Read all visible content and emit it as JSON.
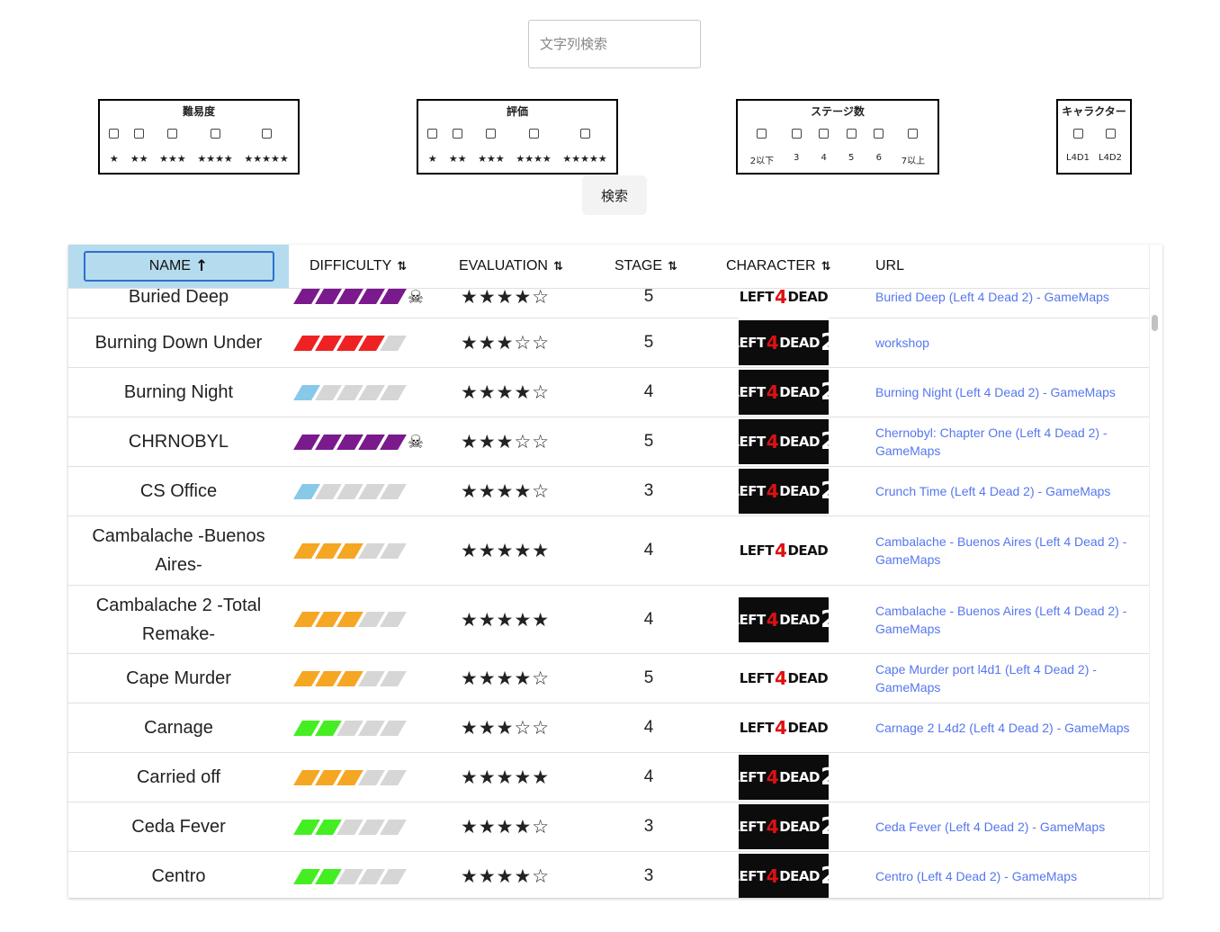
{
  "search": {
    "placeholder": "文字列検索"
  },
  "filters": {
    "difficulty": {
      "title": "難易度",
      "options": [
        "★",
        "★★",
        "★★★",
        "★★★★",
        "★★★★★"
      ]
    },
    "evaluation": {
      "title": "評価",
      "options": [
        "★",
        "★★",
        "★★★",
        "★★★★",
        "★★★★★"
      ]
    },
    "stages": {
      "title": "ステージ数",
      "options": [
        "2以下",
        "3",
        "4",
        "5",
        "6",
        "7以上"
      ]
    },
    "character": {
      "title": "キャラクター",
      "options": [
        "L4D1",
        "L4D2"
      ]
    }
  },
  "search_button": "検索",
  "table": {
    "headers": {
      "name": "NAME",
      "difficulty": "DIFFICULTY",
      "evaluation": "EVALUATION",
      "stage": "STAGE",
      "character": "CHARACTER",
      "url": "URL"
    },
    "rows": [
      {
        "name": "Buried Deep",
        "difficulty": 5,
        "diff_color": "#7a1a8c",
        "skull": true,
        "rating": "★★★★☆",
        "stage": "5",
        "character": "L4D1",
        "url": "Buried Deep (Left 4 Dead 2) - GameMaps"
      },
      {
        "name": "Burning Down Under",
        "difficulty": 4,
        "diff_color": "#ee2222",
        "skull": false,
        "rating": "★★★☆☆",
        "stage": "5",
        "character": "L4D2",
        "url": "workshop"
      },
      {
        "name": "Burning Night",
        "difficulty": 1,
        "diff_color": "#88c8e8",
        "skull": false,
        "rating": "★★★★☆",
        "stage": "4",
        "character": "L4D2",
        "url": "Burning Night (Left 4 Dead 2) - GameMaps"
      },
      {
        "name": "CHRNOBYL",
        "difficulty": 5,
        "diff_color": "#7a1a8c",
        "skull": true,
        "rating": "★★★☆☆",
        "stage": "5",
        "character": "L4D2",
        "url": "Chernobyl: Chapter One (Left 4 Dead 2) - GameMaps"
      },
      {
        "name": "CS Office",
        "difficulty": 1,
        "diff_color": "#88c8e8",
        "skull": false,
        "rating": "★★★★☆",
        "stage": "3",
        "character": "L4D2",
        "url": "Crunch Time (Left 4 Dead 2) - GameMaps"
      },
      {
        "name": "Cambalache -Buenos Aires-",
        "difficulty": 3,
        "diff_color": "#f5a623",
        "skull": false,
        "rating": "★★★★★",
        "stage": "4",
        "character": "L4D1",
        "url": "Cambalache - Buenos Aires (Left 4 Dead 2) - GameMaps"
      },
      {
        "name": "Cambalache 2 -Total Remake-",
        "difficulty": 3,
        "diff_color": "#f5a623",
        "skull": false,
        "rating": "★★★★★",
        "stage": "4",
        "character": "L4D2",
        "url": "Cambalache - Buenos Aires (Left 4 Dead 2) - GameMaps"
      },
      {
        "name": "Cape Murder",
        "difficulty": 3,
        "diff_color": "#f5a623",
        "skull": false,
        "rating": "★★★★☆",
        "stage": "5",
        "character": "L4D1",
        "url": "Cape Murder port l4d1 (Left 4 Dead 2) - GameMaps"
      },
      {
        "name": "Carnage",
        "difficulty": 2,
        "diff_color": "#44ee22",
        "skull": false,
        "rating": "★★★☆☆",
        "stage": "4",
        "character": "L4D1",
        "url": "Carnage 2 L4d2 (Left 4 Dead 2) - GameMaps"
      },
      {
        "name": "Carried off",
        "difficulty": 3,
        "diff_color": "#f5a623",
        "skull": false,
        "rating": "★★★★★",
        "stage": "4",
        "character": "L4D2",
        "url": ""
      },
      {
        "name": "Ceda Fever",
        "difficulty": 2,
        "diff_color": "#44ee22",
        "skull": false,
        "rating": "★★★★☆",
        "stage": "3",
        "character": "L4D2",
        "url": "Ceda Fever (Left 4 Dead 2) - GameMaps"
      },
      {
        "name": "Centro",
        "difficulty": 2,
        "diff_color": "#44ee22",
        "skull": false,
        "rating": "★★★★☆",
        "stage": "3",
        "character": "L4D2",
        "url": "Centro (Left 4 Dead 2) - GameMaps"
      }
    ]
  },
  "logos": {
    "l4d1": {
      "left": "LEFT",
      "four": "4",
      "dead": "DEAD"
    },
    "l4d2": {
      "left": "LEFT",
      "four": "4",
      "dead": "DEAD",
      "two": "2"
    }
  },
  "icons": {
    "sort_icon": "⇅",
    "arrow_up_icon": "↑",
    "skull_icon": "☠"
  }
}
